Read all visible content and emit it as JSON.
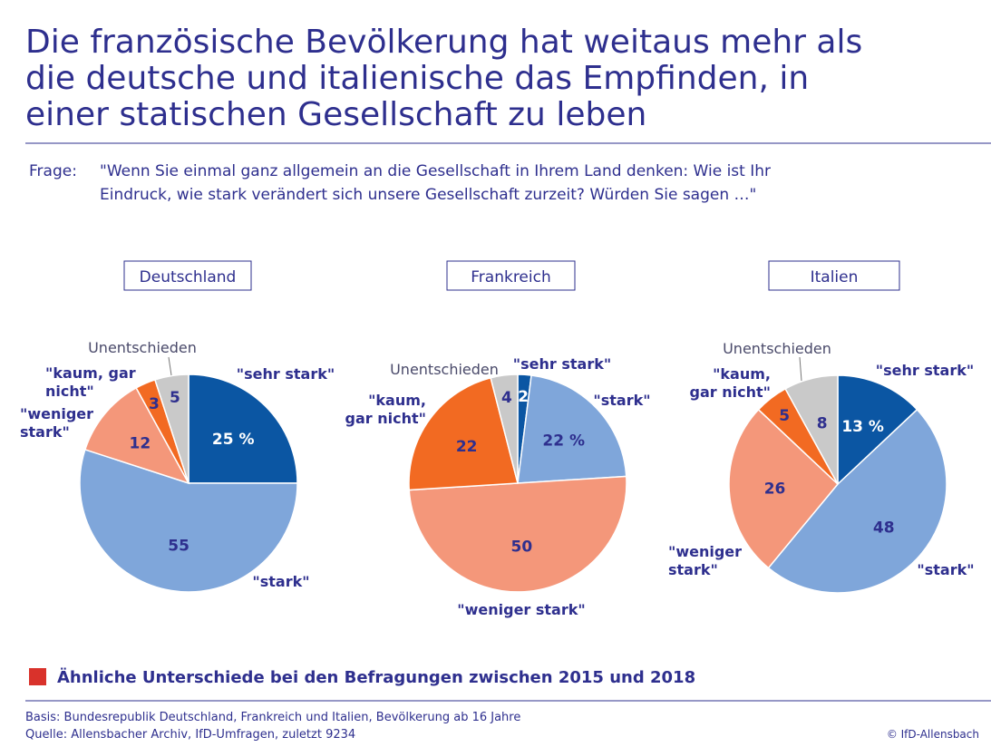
{
  "title": "Die französische Bevölkerung hat weitaus mehr als die deutsche und italienische das Empfinden, in einer statischen Gesellschaft zu leben",
  "question_label": "Frage:",
  "question": "\"Wenn Sie einmal ganz allgemein an die Gesellschaft in Ihrem Land denken: Wie ist Ihr Eindruck, wie stark verändert sich unsere Gesellschaft zurzeit? Würden Sie sagen …\"",
  "note": "Ähnliche Unterschiede bei den Befragungen zwischen 2015 und 2018",
  "basis": "Basis: Bundesrepublik Deutschland, Frankreich und Italien, Bevölkerung ab 16 Jahre",
  "source": "Quelle: Allensbacher Archiv, IfD-Umfragen, zuletzt 9234",
  "copyright": "© IfD-Allensbach",
  "chart_data": [
    {
      "type": "pie",
      "title": "Deutschland",
      "categories": [
        "\"sehr stark\"",
        "\"stark\"",
        "\"weniger stark\"",
        "\"kaum, gar nicht\"",
        "Unentschieden"
      ],
      "values": [
        25,
        55,
        12,
        3,
        5
      ],
      "value_labels": [
        "25 %",
        "55",
        "12",
        "3",
        "5"
      ],
      "colors": [
        "#0b56a3",
        "#7fa6da",
        "#f4977a",
        "#f26a22",
        "#c9c9c9"
      ]
    },
    {
      "type": "pie",
      "title": "Frankreich",
      "categories": [
        "\"sehr stark\"",
        "\"stark\"",
        "\"weniger stark\"",
        "\"kaum, gar nicht\"",
        "Unentschieden"
      ],
      "values": [
        2,
        22,
        50,
        22,
        4
      ],
      "value_labels": [
        "2",
        "22 %",
        "50",
        "22",
        "4"
      ],
      "colors": [
        "#0b56a3",
        "#7fa6da",
        "#f4977a",
        "#f26a22",
        "#c9c9c9"
      ]
    },
    {
      "type": "pie",
      "title": "Italien",
      "categories": [
        "\"sehr stark\"",
        "\"stark\"",
        "\"weniger stark\"",
        "\"kaum, gar nicht\"",
        "Unentschieden"
      ],
      "values": [
        13,
        48,
        26,
        5,
        8
      ],
      "value_labels": [
        "13 %",
        "48",
        "26",
        "5",
        "8"
      ],
      "colors": [
        "#0b56a3",
        "#7fa6da",
        "#f4977a",
        "#f26a22",
        "#c9c9c9"
      ]
    }
  ]
}
